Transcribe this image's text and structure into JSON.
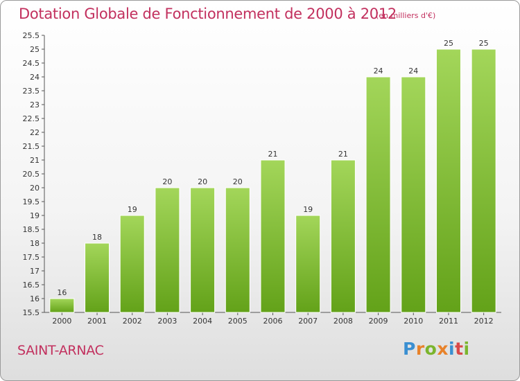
{
  "header": {
    "title": "Dotation Globale de Fonctionnement de 2000 à 2012",
    "subtitle": "(en milliers d'€)"
  },
  "footer": {
    "place": "SAINT-ARNAC",
    "brand": "Proxiti"
  },
  "colors": {
    "title": "#c2305e",
    "bar_light": "#a3d65a",
    "bar_dark": "#63a219",
    "brand_letters": [
      "#3a8fd1",
      "#e8822a",
      "#7bb52d",
      "#e8822a",
      "#3a8fd1",
      "#d94848",
      "#7bb52d"
    ]
  },
  "chart_data": {
    "type": "bar",
    "title": "Dotation Globale de Fonctionnement de 2000 à 2012",
    "subtitle": "(en milliers d'€)",
    "xlabel": "",
    "ylabel": "",
    "categories": [
      "2000",
      "2001",
      "2002",
      "2003",
      "2004",
      "2005",
      "2006",
      "2007",
      "2008",
      "2009",
      "2010",
      "2011",
      "2012"
    ],
    "values": [
      16,
      18,
      19,
      20,
      20,
      20,
      21,
      19,
      21,
      24,
      24,
      25,
      25
    ],
    "data_labels": [
      "16",
      "18",
      "19",
      "20",
      "20",
      "20",
      "21",
      "19",
      "21",
      "24",
      "24",
      "25",
      "25"
    ],
    "ylim": [
      15.5,
      25.5
    ],
    "yticks": [
      "15.5",
      "16",
      "16.5",
      "17",
      "17.5",
      "18",
      "18.5",
      "19",
      "19.5",
      "20",
      "20.5",
      "21",
      "21.5",
      "22",
      "22.5",
      "23",
      "23.5",
      "24",
      "24.5",
      "25",
      "25.5"
    ],
    "grid": false,
    "legend": "none"
  }
}
